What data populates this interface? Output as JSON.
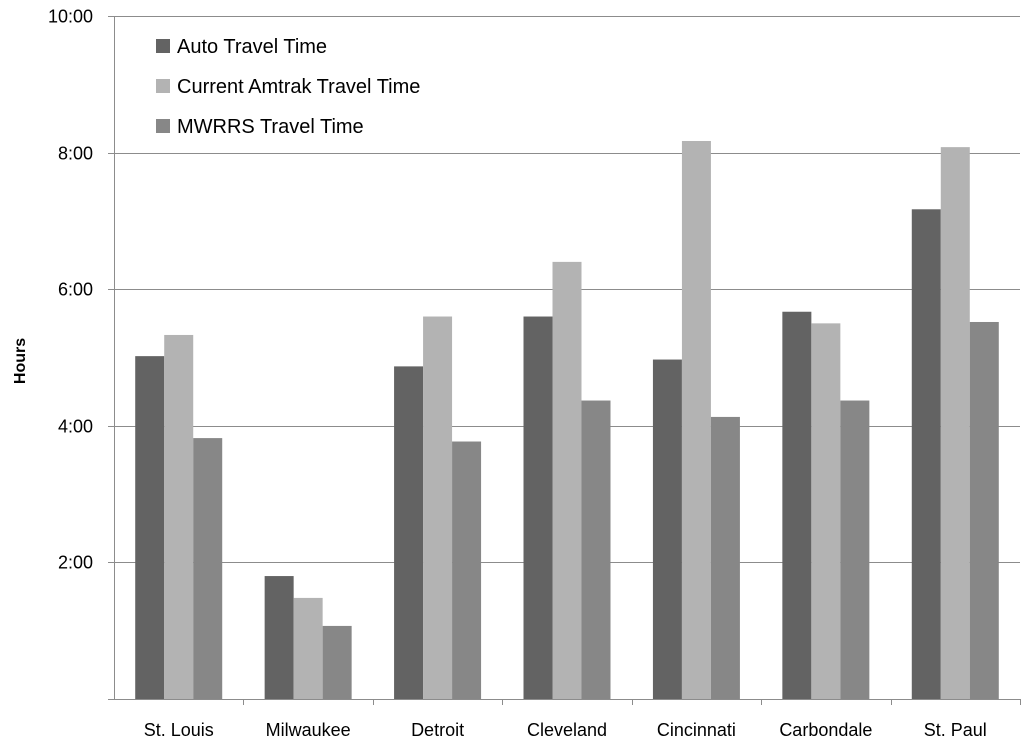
{
  "chart_data": {
    "type": "bar",
    "title": "",
    "xlabel": "",
    "ylabel": "Hours",
    "ylim": [
      0,
      10
    ],
    "yticks": [
      {
        "value": 2,
        "label": "2:00"
      },
      {
        "value": 4,
        "label": "4:00"
      },
      {
        "value": 6,
        "label": "6:00"
      },
      {
        "value": 8,
        "label": "8:00"
      },
      {
        "value": 10,
        "label": "10:00"
      }
    ],
    "grid": true,
    "legend_position": "top-left",
    "categories": [
      "St. Louis",
      "Milwaukee",
      "Detroit",
      "Cleveland",
      "Cincinnati",
      "Carbondale",
      "St. Paul"
    ],
    "series": [
      {
        "name": "Auto Travel Time",
        "color": "#636363",
        "values": [
          5.02,
          1.8,
          4.87,
          5.6,
          4.97,
          5.67,
          7.17
        ]
      },
      {
        "name": "Current Amtrak Travel Time",
        "color": "#b3b3b3",
        "values": [
          5.33,
          1.48,
          5.6,
          6.4,
          8.17,
          5.5,
          8.08
        ]
      },
      {
        "name": "MWRRS Travel Time",
        "color": "#878787",
        "values": [
          3.82,
          1.07,
          3.77,
          4.37,
          4.13,
          4.37,
          5.52
        ]
      }
    ]
  }
}
